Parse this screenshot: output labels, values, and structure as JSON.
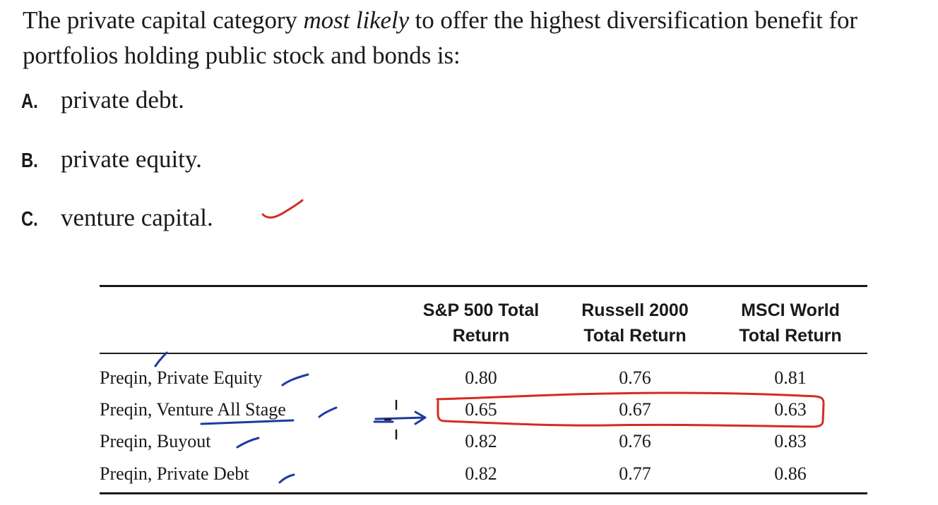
{
  "question": {
    "before": "The private capital category ",
    "emphasis": "most likely",
    "after": " to offer the highest diversification benefit for portfolios holding public stock and bonds is:"
  },
  "options": [
    {
      "letter": "A.",
      "text": "private debt."
    },
    {
      "letter": "B.",
      "text": "private equity."
    },
    {
      "letter": "C.",
      "text": "venture capital."
    }
  ],
  "table": {
    "columns": [
      {
        "line1": "S&P 500 Total",
        "line2": "Return"
      },
      {
        "line1": "Russell 2000",
        "line2": "Total Return"
      },
      {
        "line1": "MSCI World",
        "line2": "Total Return"
      }
    ],
    "rows": [
      {
        "label": "Preqin, Private Equity",
        "values": [
          "0.80",
          "0.76",
          "0.81"
        ]
      },
      {
        "label": "Preqin, Venture All Stage",
        "values": [
          "0.65",
          "0.67",
          "0.63"
        ]
      },
      {
        "label": "Preqin, Buyout",
        "values": [
          "0.82",
          "0.76",
          "0.83"
        ]
      },
      {
        "label": "Preqin, Private Debt",
        "values": [
          "0.82",
          "0.77",
          "0.86"
        ]
      }
    ]
  },
  "colors": {
    "text": "#1a1a1a",
    "red_annotation": "#d42b22",
    "blue_annotation": "#1f3a9e"
  }
}
